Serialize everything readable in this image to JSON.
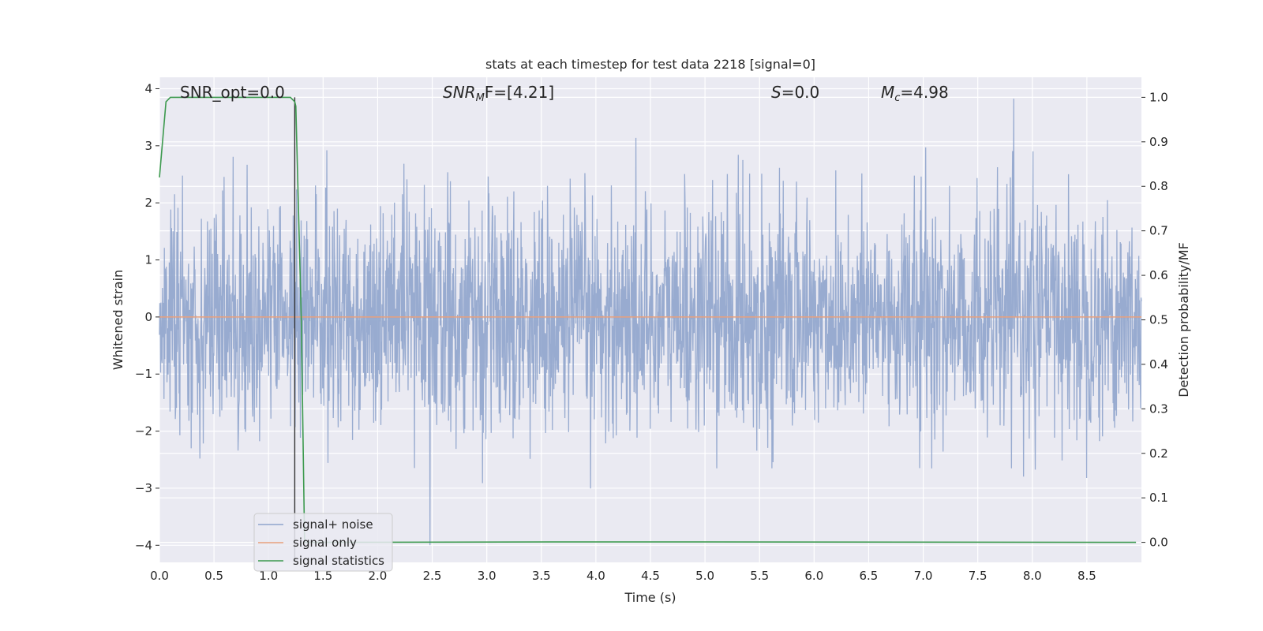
{
  "chart_data": {
    "type": "line",
    "title": "stats at each timestep for test data 2218 [signal=0]",
    "xlabel": "Time (s)",
    "ylabel": "Whitened strain",
    "ylabel_right": "Detection probability/MF",
    "xlim": [
      0.0,
      9.0
    ],
    "ylim": [
      -4.3,
      4.2
    ],
    "ylim_right": [
      -0.045,
      1.045
    ],
    "x_ticks": [
      "0.0",
      "0.5",
      "1.0",
      "1.5",
      "2.0",
      "2.5",
      "3.0",
      "3.5",
      "4.0",
      "4.5",
      "5.0",
      "5.5",
      "6.0",
      "6.5",
      "7.0",
      "7.5",
      "8.0",
      "8.5"
    ],
    "y_ticks": [
      "4",
      "3",
      "2",
      "1",
      "0",
      "−1",
      "−2",
      "−3",
      "−4"
    ],
    "y_ticks_right": [
      "1.0",
      "0.9",
      "0.8",
      "0.7",
      "0.6",
      "0.5",
      "0.4",
      "0.3",
      "0.2",
      "0.1",
      "0.0"
    ],
    "grid": true,
    "legend_placement": "lower-left",
    "annotations": {
      "snr_opt": "SNR_opt=0.0",
      "snr_mf_base": "SNR",
      "snr_mf_sub": "M",
      "snr_mf_rest": "F=[4.21]",
      "s_label": "S",
      "s_value": "=0.0",
      "mc_label": "M",
      "mc_sub": "c",
      "mc_value": "=4.98"
    },
    "marker_x": 1.24,
    "series": [
      {
        "name": "signal+ noise",
        "color": "#8fa4cc",
        "description": "whitened noise, approx within [-4, 4]",
        "noise_amplitude_approx": 1.0,
        "x_range": [
          0.0,
          9.0
        ]
      },
      {
        "name": "signal only",
        "color": "#e8a07c",
        "x": [
          0.0,
          9.0
        ],
        "y": [
          0.0,
          0.0
        ]
      },
      {
        "name": "signal statistics",
        "color": "#3d9a4f",
        "axis": "right",
        "x": [
          0.0,
          0.06,
          0.1,
          1.15,
          1.2,
          1.24,
          1.25,
          1.3,
          1.33,
          1.4,
          3.6,
          4.6,
          8.95
        ],
        "y": [
          0.82,
          0.99,
          1.0,
          1.0,
          1.0,
          0.99,
          0.98,
          0.5,
          0.0,
          0.0,
          0.001,
          0.001,
          0.0
        ]
      }
    ]
  },
  "colors": {
    "plot_bg": "#eaeaf2",
    "grid": "#ffffff",
    "noise": "#8fa4cc",
    "signal": "#e8a07c",
    "stats": "#3d9a4f",
    "marker": "#333333"
  }
}
